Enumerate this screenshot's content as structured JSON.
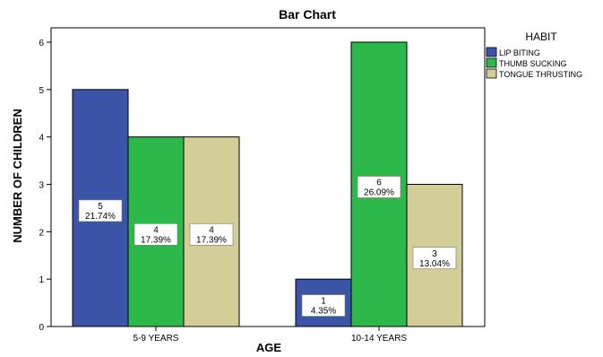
{
  "chart_data": {
    "type": "bar",
    "title": "Bar Chart",
    "xlabel": "AGE",
    "ylabel": "NUMBER OF CHILDREN",
    "categories": [
      "5-9 YEARS",
      "10-14 YEARS"
    ],
    "ylim": [
      0,
      6
    ],
    "yticks": [
      0,
      1,
      2,
      3,
      4,
      5,
      6
    ],
    "grid": false,
    "legend": {
      "title": "HABIT",
      "position": "right"
    },
    "series": [
      {
        "name": "LIP BITING",
        "color": "#3c54a8",
        "values": [
          5,
          1
        ],
        "labels": [
          [
            "5",
            "21.74%"
          ],
          [
            "1",
            "4.35%"
          ]
        ]
      },
      {
        "name": "THUMB SUCKING",
        "color": "#2db84b",
        "values": [
          4,
          6
        ],
        "labels": [
          [
            "4",
            "17.39%"
          ],
          [
            "6",
            "26.09%"
          ]
        ]
      },
      {
        "name": "TONGUE THRUSTING",
        "color": "#d3ce97",
        "values": [
          4,
          3
        ],
        "labels": [
          [
            "4",
            "17.39%"
          ],
          [
            "3",
            "13.04%"
          ]
        ]
      }
    ]
  }
}
